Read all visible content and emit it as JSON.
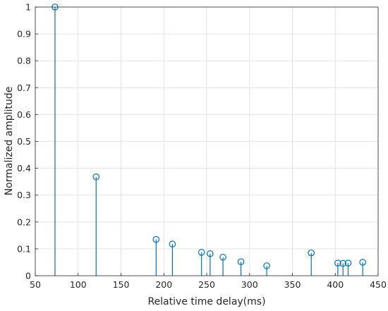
{
  "chart_data": {
    "type": "stem",
    "title": "",
    "xlabel": "Relative time delay(ms)",
    "ylabel": "Normalized amplitude",
    "xlim": [
      50,
      450
    ],
    "ylim": [
      0,
      1
    ],
    "xticks": [
      50,
      100,
      150,
      200,
      250,
      300,
      350,
      400,
      450
    ],
    "yticks": [
      0,
      0.1,
      0.2,
      0.3,
      0.4,
      0.5,
      0.6,
      0.7,
      0.8,
      0.9,
      1
    ],
    "ytick_labels": [
      "0",
      "0.1",
      "0.2",
      "0.3",
      "0.4",
      "0.5",
      "0.6",
      "0.7",
      "0.8",
      "0.9",
      "1"
    ],
    "grid": true,
    "series": [
      {
        "color": "#0072BD",
        "marker": "circle",
        "x": [
          73,
          121,
          191,
          210,
          244,
          254,
          269,
          290,
          320,
          372,
          403,
          409,
          415,
          432
        ],
        "y": [
          1.0,
          0.368,
          0.135,
          0.118,
          0.087,
          0.082,
          0.069,
          0.052,
          0.037,
          0.085,
          0.047,
          0.046,
          0.047,
          0.05
        ]
      }
    ]
  }
}
